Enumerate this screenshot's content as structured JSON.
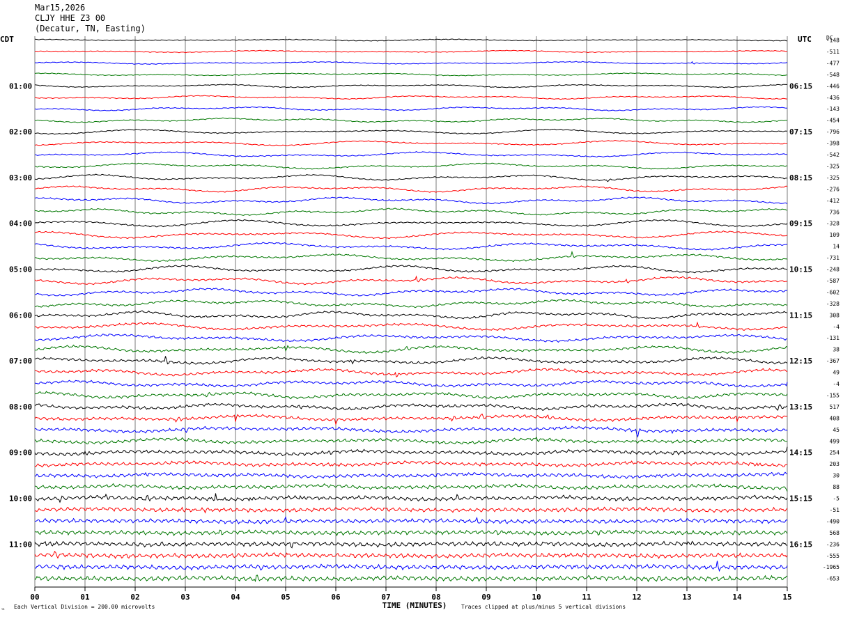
{
  "header": {
    "date": "Mar15,2026",
    "station": "CLJY HHE Z3 00",
    "location": "(Decatur, TN, Easting)"
  },
  "left_timezone": "CDT",
  "right_timezone": "UTC",
  "dc_header": "DC",
  "footer": {
    "scale": "Each Vertical Division =  200.00 microvolts",
    "clip": "Traces clipped at plus/minus 5 vertical divisions",
    "mark": "⌁"
  },
  "chart_data": {
    "type": "line",
    "title": "",
    "xlabel": "TIME (MINUTES)",
    "xlim": [
      0,
      15
    ],
    "x_ticks": [
      "00",
      "01",
      "02",
      "03",
      "04",
      "05",
      "06",
      "07",
      "08",
      "09",
      "10",
      "11",
      "12",
      "13",
      "14",
      "15"
    ],
    "trace_count": 48,
    "trace_colors": [
      "#000000",
      "#ff0000",
      "#0000ff",
      "#007700"
    ],
    "left_hour_labels": [
      "01:00",
      "02:00",
      "03:00",
      "04:00",
      "05:00",
      "06:00",
      "07:00",
      "08:00",
      "09:00",
      "10:00",
      "11:00"
    ],
    "right_hour_labels": [
      "06:15",
      "07:15",
      "08:15",
      "09:15",
      "10:15",
      "11:15",
      "12:15",
      "13:15",
      "14:15",
      "15:15",
      "16:15"
    ],
    "hour_label_trace_index": [
      4,
      8,
      12,
      16,
      20,
      24,
      28,
      32,
      36,
      40,
      44
    ],
    "dc_offsets": [
      "-148",
      "-511",
      "-477",
      "-548",
      "-446",
      "-436",
      "-143",
      "-454",
      "-796",
      "-398",
      "-542",
      "-325",
      "-325",
      "-276",
      "-412",
      "736",
      "-328",
      "109",
      "14",
      "-731",
      "-248",
      "-587",
      "-602",
      "-328",
      "308",
      "-4",
      "-131",
      "38",
      "-367",
      "49",
      "-4",
      "-155",
      "517",
      "408",
      "45",
      "499",
      "254",
      "203",
      "30",
      "88",
      "-5",
      "-51",
      "-490",
      "568",
      "-236",
      "-555",
      "-1965",
      "-653"
    ],
    "events": [
      {
        "trace": 2,
        "minute": 13.1,
        "amp": 3
      },
      {
        "trace": 12,
        "minute": 11.4,
        "amp": 3
      },
      {
        "trace": 15,
        "minute": 5.5,
        "amp": 3
      },
      {
        "trace": 19,
        "minute": 10.7,
        "amp": 6
      },
      {
        "trace": 21,
        "minute": 7.6,
        "amp": 6
      },
      {
        "trace": 21,
        "minute": 11.8,
        "amp": 5
      },
      {
        "trace": 25,
        "minute": 13.2,
        "amp": 5
      },
      {
        "trace": 26,
        "minute": 2.6,
        "amp": 4
      },
      {
        "trace": 27,
        "minute": 5.0,
        "amp": 6
      },
      {
        "trace": 27,
        "minute": 7.4,
        "amp": 4
      },
      {
        "trace": 28,
        "minute": 2.6,
        "amp": 8
      },
      {
        "trace": 28,
        "minute": 6.3,
        "amp": 6
      },
      {
        "trace": 29,
        "minute": 7.2,
        "amp": 6
      },
      {
        "trace": 30,
        "minute": 15.0,
        "amp": 4
      },
      {
        "trace": 31,
        "minute": 3.4,
        "amp": 4
      },
      {
        "trace": 32,
        "minute": 5.3,
        "amp": 6
      },
      {
        "trace": 32,
        "minute": 14.8,
        "amp": 7
      },
      {
        "trace": 33,
        "minute": 2.8,
        "amp": 6
      },
      {
        "trace": 33,
        "minute": 4.0,
        "amp": 8
      },
      {
        "trace": 33,
        "minute": 6.0,
        "amp": 6
      },
      {
        "trace": 33,
        "minute": 8.3,
        "amp": 6
      },
      {
        "trace": 33,
        "minute": 8.9,
        "amp": 5
      },
      {
        "trace": 33,
        "minute": 10.2,
        "amp": 8
      },
      {
        "trace": 33,
        "minute": 14.0,
        "amp": 5
      },
      {
        "trace": 34,
        "minute": 0.8,
        "amp": 5
      },
      {
        "trace": 34,
        "minute": 3.0,
        "amp": 6
      },
      {
        "trace": 34,
        "minute": 12.0,
        "amp": 12
      },
      {
        "trace": 34,
        "minute": 12.7,
        "amp": 5
      },
      {
        "trace": 35,
        "minute": 10.0,
        "amp": 4
      },
      {
        "trace": 35,
        "minute": 11.6,
        "amp": 5
      },
      {
        "trace": 36,
        "minute": 1.0,
        "amp": 4
      },
      {
        "trace": 36,
        "minute": 5.9,
        "amp": 5
      },
      {
        "trace": 36,
        "minute": 12.7,
        "amp": 5
      },
      {
        "trace": 36,
        "minute": 15.0,
        "amp": 6
      },
      {
        "trace": 37,
        "minute": 14.4,
        "amp": 4
      },
      {
        "trace": 38,
        "minute": 2.2,
        "amp": 4
      },
      {
        "trace": 38,
        "minute": 8.0,
        "amp": 5
      },
      {
        "trace": 38,
        "minute": 8.6,
        "amp": 4
      },
      {
        "trace": 38,
        "minute": 9.6,
        "amp": 4
      },
      {
        "trace": 39,
        "minute": 15.0,
        "amp": 5
      },
      {
        "trace": 40,
        "minute": 0.5,
        "amp": 5
      },
      {
        "trace": 40,
        "minute": 1.4,
        "amp": 5
      },
      {
        "trace": 40,
        "minute": 2.2,
        "amp": 6
      },
      {
        "trace": 40,
        "minute": 3.6,
        "amp": 8
      },
      {
        "trace": 40,
        "minute": 4.3,
        "amp": 5
      },
      {
        "trace": 40,
        "minute": 5.3,
        "amp": 7
      },
      {
        "trace": 40,
        "minute": 8.4,
        "amp": 6
      },
      {
        "trace": 40,
        "minute": 13.4,
        "amp": 6
      },
      {
        "trace": 41,
        "minute": 2.9,
        "amp": 5
      },
      {
        "trace": 41,
        "minute": 3.4,
        "amp": 5
      },
      {
        "trace": 41,
        "minute": 10.6,
        "amp": 5
      },
      {
        "trace": 42,
        "minute": 4.4,
        "amp": 4
      },
      {
        "trace": 42,
        "minute": 5.0,
        "amp": 5
      },
      {
        "trace": 42,
        "minute": 8.8,
        "amp": 4
      },
      {
        "trace": 43,
        "minute": 3.7,
        "amp": 4
      },
      {
        "trace": 43,
        "minute": 9.2,
        "amp": 5
      },
      {
        "trace": 43,
        "minute": 11.2,
        "amp": 4
      },
      {
        "trace": 44,
        "minute": 0.2,
        "amp": 7
      },
      {
        "trace": 44,
        "minute": 2.5,
        "amp": 5
      },
      {
        "trace": 44,
        "minute": 5.1,
        "amp": 7
      },
      {
        "trace": 44,
        "minute": 10.2,
        "amp": 4
      },
      {
        "trace": 44,
        "minute": 13.0,
        "amp": 8
      },
      {
        "trace": 45,
        "minute": 0.4,
        "amp": 6
      },
      {
        "trace": 46,
        "minute": 4.5,
        "amp": 5
      },
      {
        "trace": 46,
        "minute": 13.6,
        "amp": 7
      },
      {
        "trace": 47,
        "minute": 2.8,
        "amp": 4
      },
      {
        "trace": 47,
        "minute": 4.4,
        "amp": 5
      },
      {
        "trace": 47,
        "minute": 12.4,
        "amp": 4
      }
    ]
  }
}
